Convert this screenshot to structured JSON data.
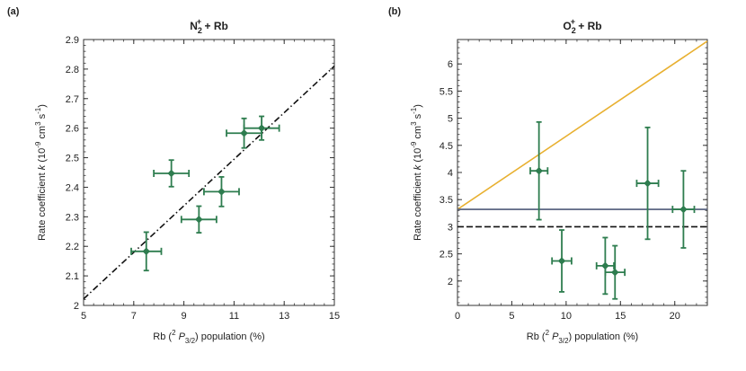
{
  "figure": {
    "panel_a_label": "(a)",
    "panel_b_label": "(b)"
  },
  "chart_data": [
    {
      "type": "scatter",
      "title": "N2+ + Rb",
      "title_parts": {
        "main": "N",
        "sub": "2",
        "sup": "+",
        "rest": " + Rb"
      },
      "xlabel": "Rb (2 P3/2) population (%)",
      "xlabel_parts": {
        "pre": "Rb (",
        "sup": "2",
        "italic": " P",
        "sub": "3/2",
        "post": ") population (%)"
      },
      "ylabel": "Rate coefficient  k (10-9 cm3 s-1)",
      "ylabel_parts": {
        "pre": "Rate coefficient  ",
        "italic": "k",
        "mid": " (10",
        "sup1": "-9",
        "mid2": " cm",
        "sup2": "3",
        "mid3": " s",
        "sup3": "-1",
        "post": ")"
      },
      "xlim": [
        5,
        15
      ],
      "ylim": [
        2.0,
        2.9
      ],
      "xticks": [
        5,
        7,
        9,
        11,
        13,
        15
      ],
      "xtick_labels": [
        "5",
        "7",
        "9",
        "11",
        "13",
        "15"
      ],
      "yticks": [
        2.0,
        2.1,
        2.2,
        2.3,
        2.4,
        2.5,
        2.6,
        2.7,
        2.8,
        2.9
      ],
      "ytick_labels": [
        "2",
        "2.1",
        "2.2",
        "2.3",
        "2.4",
        "2.5",
        "2.6",
        "2.7",
        "2.8",
        "2.9"
      ],
      "points": [
        {
          "x": 7.5,
          "y": 2.183,
          "xerr": 0.6,
          "yerr": 0.065
        },
        {
          "x": 8.5,
          "y": 2.447,
          "xerr": 0.7,
          "yerr": 0.045
        },
        {
          "x": 9.6,
          "y": 2.291,
          "xerr": 0.7,
          "yerr": 0.045
        },
        {
          "x": 10.5,
          "y": 2.385,
          "xerr": 0.7,
          "yerr": 0.05
        },
        {
          "x": 11.4,
          "y": 2.583,
          "xerr": 0.7,
          "yerr": 0.05
        },
        {
          "x": 12.1,
          "y": 2.6,
          "xerr": 0.7,
          "yerr": 0.04
        }
      ],
      "lines": [
        {
          "style": "dashdot",
          "color": "#111111",
          "x": [
            5,
            15
          ],
          "y": [
            2.022,
            2.81
          ]
        }
      ],
      "marker_color": "#2e7d4f"
    },
    {
      "type": "scatter",
      "title": "O2+ + Rb",
      "title_parts": {
        "main": "O",
        "sub": "2",
        "sup": "+",
        "rest": " + Rb"
      },
      "xlabel": "Rb (2 P3/2) population (%)",
      "xlabel_parts": {
        "pre": "Rb (",
        "sup": "2",
        "italic": " P",
        "sub": "3/2",
        "post": ") population (%)"
      },
      "ylabel": "Rate coefficient  k (10-9 cm3 s-1)",
      "ylabel_parts": {
        "pre": "Rate coefficient  ",
        "italic": "k",
        "mid": " (10",
        "sup1": "-9",
        "mid2": " cm",
        "sup2": "3",
        "mid3": " s",
        "sup3": "-1",
        "post": ")"
      },
      "xlim": [
        0,
        23
      ],
      "ylim": [
        1.55,
        6.45
      ],
      "xticks": [
        0,
        5,
        10,
        15,
        20
      ],
      "xtick_labels": [
        "0",
        "5",
        "10",
        "15",
        "20"
      ],
      "yticks": [
        2,
        2.5,
        3,
        3.5,
        4,
        4.5,
        5,
        5.5,
        6
      ],
      "ytick_labels": [
        "2",
        "2.5",
        "3",
        "3.5",
        "4",
        "4.5",
        "5",
        "5.5",
        "6"
      ],
      "points": [
        {
          "x": 7.5,
          "y": 4.03,
          "xerr": 0.8,
          "yerr": 0.9
        },
        {
          "x": 9.6,
          "y": 2.37,
          "xerr": 0.9,
          "yerr": 0.57
        },
        {
          "x": 13.6,
          "y": 2.28,
          "xerr": 0.8,
          "yerr": 0.52
        },
        {
          "x": 14.5,
          "y": 2.16,
          "xerr": 0.9,
          "yerr": 0.49
        },
        {
          "x": 17.5,
          "y": 3.8,
          "xerr": 1.0,
          "yerr": 1.03
        },
        {
          "x": 20.8,
          "y": 3.32,
          "xerr": 1.0,
          "yerr": 0.71
        }
      ],
      "lines": [
        {
          "style": "solid",
          "color": "#e8b030",
          "x": [
            0,
            23
          ],
          "y": [
            3.32,
            6.42
          ]
        },
        {
          "style": "solid",
          "color": "#4f5a78",
          "x": [
            0,
            23
          ],
          "y": [
            3.32,
            3.32
          ]
        },
        {
          "style": "dashed",
          "color": "#111111",
          "x": [
            0,
            23
          ],
          "y": [
            3.0,
            3.0
          ]
        }
      ],
      "marker_color": "#2e7d4f"
    }
  ]
}
